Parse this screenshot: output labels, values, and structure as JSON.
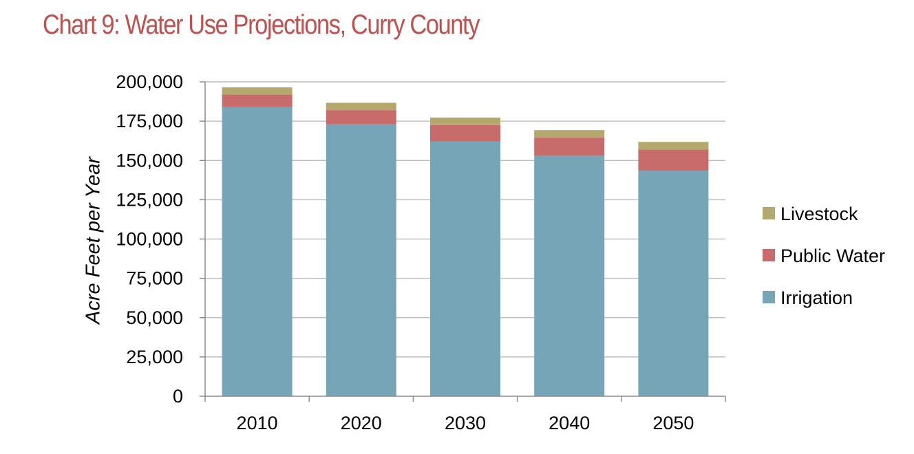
{
  "chart_data": {
    "type": "bar",
    "stacked": true,
    "title": "Chart 9: Water Use Projections, Curry County",
    "xlabel": "",
    "ylabel": "Acre Feet per Year",
    "categories": [
      "2010",
      "2020",
      "2030",
      "2040",
      "2050"
    ],
    "ylim": [
      0,
      200000
    ],
    "yticks": [
      0,
      25000,
      50000,
      75000,
      100000,
      125000,
      150000,
      175000,
      200000
    ],
    "ytick_labels": [
      "0",
      "25,000",
      "50,000",
      "75,000",
      "100,000",
      "125,000",
      "150,000",
      "175,000",
      "200,000"
    ],
    "grid": true,
    "legend_position": "right",
    "legend_order": [
      "Livestock",
      "Public Water",
      "Irrigation"
    ],
    "series": [
      {
        "name": "Irrigation",
        "color": "#75a5b7",
        "values": [
          184000,
          173000,
          162000,
          153000,
          143500
        ]
      },
      {
        "name": "Public Water",
        "color": "#c86b6b",
        "values": [
          8000,
          9000,
          10500,
          11500,
          13500
        ]
      },
      {
        "name": "Livestock",
        "color": "#b4a86c",
        "values": [
          4500,
          4700,
          4800,
          4800,
          4800
        ]
      }
    ]
  }
}
